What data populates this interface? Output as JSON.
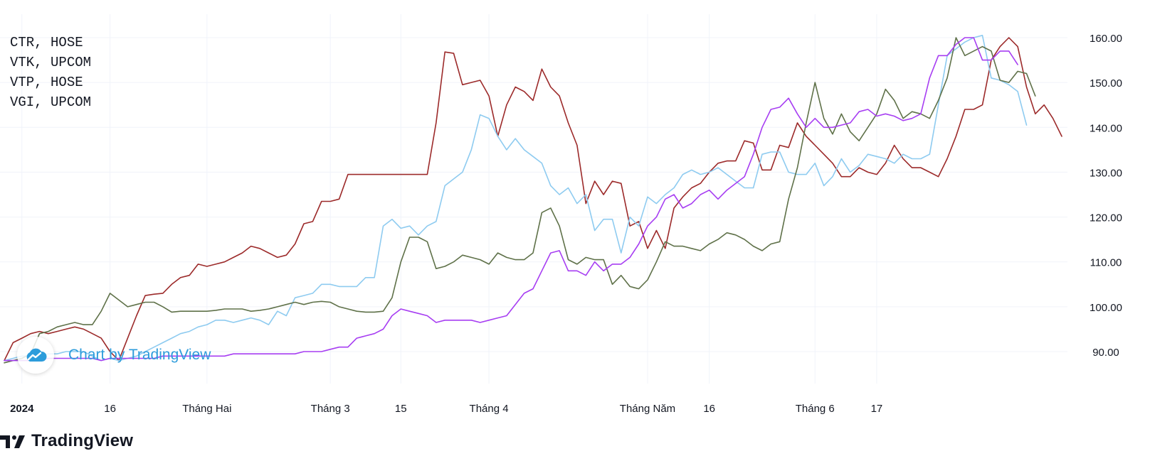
{
  "legend": [
    "CTR, HOSE",
    "VTK, UPCOM",
    "VTP, HOSE",
    "VGI, UPCOM"
  ],
  "watermark": {
    "text": "Chart by TradingView",
    "icon": "tradingview-cloud-icon"
  },
  "footer": {
    "brand": "TradingView",
    "icon": "tradingview-logo-icon"
  },
  "colors": {
    "grid": "#f0f3fa",
    "axis_text": "#131722"
  },
  "chart_data": {
    "type": "line",
    "ylim": [
      85,
      162
    ],
    "y_ticks": [
      "90.00",
      "100.00",
      "110.00",
      "120.00",
      "130.00",
      "140.00",
      "150.00",
      "160.00"
    ],
    "x_ticks": [
      {
        "label": "2024",
        "bold": true,
        "i": 2
      },
      {
        "label": "16",
        "bold": false,
        "i": 12
      },
      {
        "label": "Tháng Hai",
        "bold": false,
        "i": 23
      },
      {
        "label": "Tháng 3",
        "bold": false,
        "i": 37
      },
      {
        "label": "15",
        "bold": false,
        "i": 45
      },
      {
        "label": "Tháng 4",
        "bold": false,
        "i": 55
      },
      {
        "label": "Tháng Năm",
        "bold": false,
        "i": 73
      },
      {
        "label": "16",
        "bold": false,
        "i": 80
      },
      {
        "label": "Tháng 6",
        "bold": false,
        "i": 92
      },
      {
        "label": "17",
        "bold": false,
        "i": 99
      }
    ],
    "series": [
      {
        "name": "CTR, HOSE",
        "color": "#9c2a2a",
        "values": [
          88,
          92,
          93,
          94,
          94.5,
          94,
          94.5,
          95,
          95.5,
          95,
          94,
          93,
          90,
          88,
          93,
          98,
          102.5,
          102.8,
          103,
          105,
          106.5,
          107,
          109.5,
          109,
          109.5,
          110,
          111,
          112,
          113.5,
          113,
          112,
          111,
          111.5,
          114,
          118.5,
          119,
          123.5,
          123.5,
          124,
          129.5,
          129.5,
          129.5,
          129.5,
          129.5,
          129.5,
          129.5,
          129.5,
          129.5,
          129.5,
          141,
          156.8,
          156.5,
          149.5,
          150,
          150.5,
          147,
          138,
          145,
          149,
          148,
          146,
          153,
          149,
          147,
          141,
          136,
          123,
          128,
          125,
          128,
          127.5,
          118,
          119,
          113,
          117,
          113,
          122,
          124.5,
          126.5,
          127.5,
          130,
          132,
          132.5,
          132.5,
          137,
          136.5,
          130.5,
          130.5,
          136,
          135.5,
          141,
          138,
          136,
          134,
          132,
          129,
          129,
          131,
          130,
          129.5,
          132,
          136,
          133,
          131,
          131,
          130,
          129,
          133,
          138,
          144,
          144,
          145,
          155,
          158,
          160,
          158,
          149,
          143,
          145,
          142,
          138
        ]
      },
      {
        "name": "VTK, UPCOM",
        "color": "#8ecbf0",
        "values": [
          88,
          88.5,
          89,
          89,
          89,
          89.5,
          89.5,
          90,
          90,
          90,
          89,
          88,
          88.5,
          88,
          88.5,
          89,
          90,
          91,
          92,
          93,
          94,
          94.5,
          95.5,
          96,
          97,
          97,
          96.5,
          97,
          97.5,
          97,
          96,
          99,
          98,
          102,
          102.5,
          103,
          105,
          105,
          104.5,
          104.5,
          104.5,
          106.5,
          106.5,
          118,
          119.5,
          117.5,
          118,
          116,
          118,
          119,
          127,
          128.5,
          130,
          135,
          142.8,
          142,
          138,
          135,
          137.5,
          135,
          133.5,
          132,
          127,
          125,
          126.5,
          123,
          125,
          117,
          119.5,
          119.5,
          112,
          120,
          118,
          124.5,
          123,
          125,
          126.5,
          129.5,
          130.5,
          129.5,
          130,
          131,
          129.5,
          128,
          126.5,
          126.5,
          134,
          134.5,
          134.5,
          130,
          129.5,
          129.5,
          132,
          127,
          129,
          133,
          130,
          131.5,
          134,
          133.5,
          133,
          132,
          134,
          133,
          133,
          134,
          145,
          156,
          157.5,
          159,
          160,
          160.5,
          151,
          150.5,
          149.5,
          148,
          140.5
        ]
      },
      {
        "name": "VTP, HOSE",
        "color": "#5f7149",
        "values": [
          87.5,
          88,
          88.5,
          89.5,
          94,
          94.5,
          95.5,
          96,
          96.5,
          96,
          96,
          99,
          103,
          101.5,
          100,
          100.5,
          101,
          101,
          100,
          98.8,
          99,
          99,
          99,
          99,
          99.2,
          99.5,
          99.5,
          99.5,
          99,
          99.2,
          99.5,
          100,
          100.5,
          101,
          100.5,
          101,
          101.2,
          101,
          100,
          99.5,
          99,
          98.8,
          98.8,
          99,
          102,
          110,
          115.5,
          115.5,
          114.5,
          108.5,
          109,
          110,
          111.5,
          111,
          110.5,
          109.5,
          112,
          111,
          110.5,
          110.5,
          112,
          121,
          122,
          118,
          110.5,
          109.5,
          111,
          110.5,
          110.5,
          105,
          107,
          104.5,
          104,
          106,
          110,
          114.5,
          113.5,
          113.5,
          113,
          112.5,
          114,
          115,
          116.5,
          116,
          115,
          113.5,
          112.5,
          114,
          114.5,
          124,
          131,
          141,
          150,
          142,
          138.5,
          143,
          139,
          137,
          140,
          143,
          148.5,
          146,
          142,
          143.5,
          143,
          142,
          146,
          151,
          160,
          156,
          157,
          158,
          157,
          150.5,
          150,
          152.5,
          152,
          147
        ]
      },
      {
        "name": "VGI, UPCOM",
        "color": "#a73ef2",
        "values": [
          88,
          88,
          88,
          88,
          88,
          88.5,
          88.5,
          88.5,
          88.5,
          88.5,
          88.5,
          88,
          88.5,
          88.5,
          88.5,
          88.5,
          88.5,
          88.5,
          89,
          89,
          89,
          89,
          89,
          89,
          89,
          89,
          89.5,
          89.5,
          89.5,
          89.5,
          89.5,
          89.5,
          89.5,
          89.5,
          90,
          90,
          90,
          90.5,
          91,
          91,
          93,
          93.5,
          94,
          95,
          98,
          99.5,
          99,
          98.5,
          98,
          96.5,
          97,
          97,
          97,
          97,
          96.5,
          97,
          97.5,
          98,
          100.5,
          103,
          104,
          108,
          112,
          112.5,
          108,
          108,
          107,
          110,
          108,
          109.5,
          109.5,
          111,
          114,
          118,
          120,
          124,
          125,
          122,
          123,
          125,
          126,
          124,
          126,
          127.5,
          129,
          134,
          140,
          144,
          144.5,
          146.5,
          143,
          140,
          142,
          140,
          140,
          140.5,
          141,
          143.5,
          144,
          142.5,
          143,
          142.5,
          141.5,
          142,
          143,
          151,
          156,
          156,
          158.5,
          160,
          160,
          155,
          155,
          157,
          157,
          154
        ]
      }
    ]
  }
}
